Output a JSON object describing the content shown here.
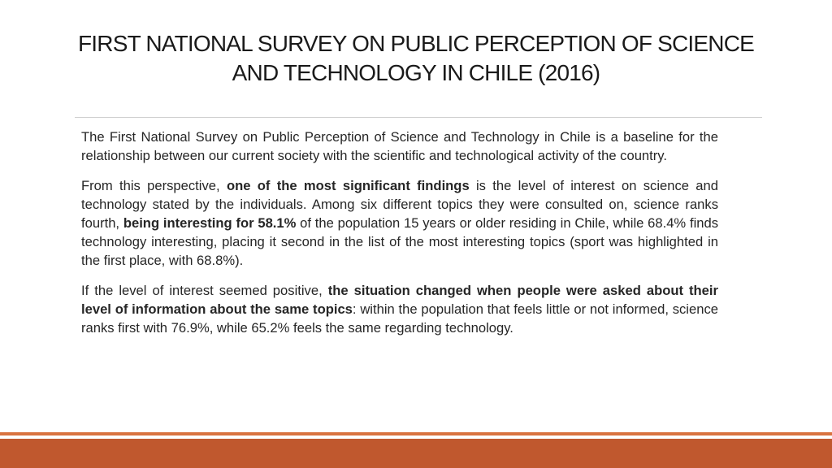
{
  "title": {
    "line1": "FIRST NATIONAL SURVEY ON PUBLIC PERCEPTION OF SCIENCE",
    "line2": "AND TECHNOLOGY IN CHILE (2016)"
  },
  "paragraphs": {
    "p1": "The First National Survey on Public Perception of Science and Technology in Chile is a baseline for the relationship between our current society with the scientific and technological activity of the country.",
    "p2_a": "From this perspective, ",
    "p2_b": "one of the most significant findings",
    "p2_c": " is the level of interest on science and technology stated by the individuals. Among six different topics they were consulted on, science ranks fourth, ",
    "p2_d": "being interesting for 58.1%",
    "p2_e": " of the population 15 years or older residing in Chile, while 68.4% finds technology interesting, placing it second in the list of the most interesting topics (sport was highlighted in the first place, with 68.8%).",
    "p3_a": "If the level of interest seemed positive, ",
    "p3_b": "the situation changed when people were asked about their level of information about the same topics",
    "p3_c": ": within the population that feels little or not informed, science ranks first with 76.9%, while 65.2% feels the same regarding technology."
  },
  "colors": {
    "accent": "#c0582e",
    "accent_thin": "#d9733f",
    "rule": "#d0d0d0"
  }
}
